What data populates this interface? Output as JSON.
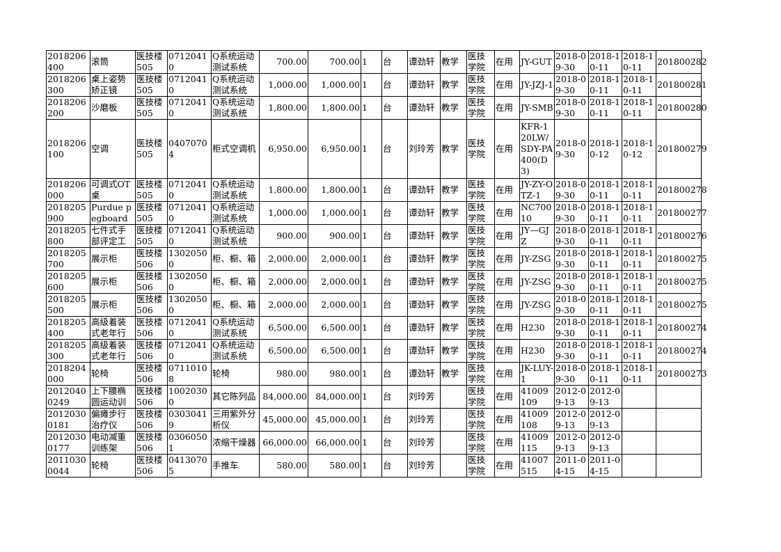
{
  "rows": [
    [
      "2018206400",
      "滚筒",
      "医技楼505",
      "07120410",
      "Q系统运动测试系统",
      "700.00",
      "700.00",
      "1",
      "台",
      "谭劲轩",
      "教学",
      "医技学院",
      "在用",
      "JY-GUT",
      "2018-09-30",
      "2018-10-11",
      "2018-10-11",
      "201800282"
    ],
    [
      "2018206300",
      "桌上姿势矫正镜",
      "医技楼505",
      "07120410",
      "Q系统运动测试系统",
      "1,000.00",
      "1,000.00",
      "1",
      "台",
      "谭劲轩",
      "教学",
      "医技学院",
      "在用",
      "JY-JZJ-1",
      "2018-09-30",
      "2018-10-11",
      "2018-10-11",
      "201800281"
    ],
    [
      "2018206200",
      "沙磨板",
      "医技楼505",
      "07120410",
      "Q系统运动测试系统",
      "1,800.00",
      "1,800.00",
      "1",
      "台",
      "谭劲轩",
      "教学",
      "医技学院",
      "在用",
      "JY-SMB",
      "2018-09-30",
      "2018-10-11",
      "2018-10-11",
      "201800280"
    ],
    [
      "2018206100",
      "空调",
      "医技楼505",
      "04070704",
      "柜式空调机",
      "6,950.00",
      "6,950.00",
      "1",
      "台",
      "刘玲芳",
      "教学",
      "医技学院",
      "在用",
      "KFR-120LW/SDY-PA400(D3)",
      "2018-09-30",
      "2018-10-12",
      "2018-10-12",
      "201800279"
    ],
    [
      "2018206000",
      "可调式OT桌",
      "医技楼505",
      "07120410",
      "Q系统运动测试系统",
      "1,800.00",
      "1,800.00",
      "1",
      "台",
      "谭劲轩",
      "教学",
      "医技学院",
      "在用",
      "JY-ZY-OTZ-1",
      "2018-09-30",
      "2018-10-11",
      "2018-10-11",
      "201800278"
    ],
    [
      "2018205900",
      "Purdue pegboard",
      "医技楼505",
      "07120410",
      "Q系统运动测试系统",
      "1,000.00",
      "1,000.00",
      "1",
      "台",
      "谭劲轩",
      "教学",
      "医技学院",
      "在用",
      "NC70010",
      "2018-09-30",
      "2018-10-11",
      "2018-10-11",
      "201800277"
    ],
    [
      "2018205800",
      "七件式手部评定工",
      "医技楼505",
      "07120410",
      "Q系统运动测试系统",
      "900.00",
      "900.00",
      "1",
      "台",
      "谭劲轩",
      "教学",
      "医技学院",
      "在用",
      "JY—GJZ",
      "2018-09-30",
      "2018-10-11",
      "2018-10-11",
      "201800276"
    ],
    [
      "2018205700",
      "展示柜",
      "医技楼506",
      "13020500",
      "柜、橱、箱",
      "2,000.00",
      "2,000.00",
      "1",
      "台",
      "谭劲轩",
      "教学",
      "医技学院",
      "在用",
      "JY-ZSG",
      "2018-09-30",
      "2018-10-11",
      "2018-10-11",
      "201800275"
    ],
    [
      "2018205600",
      "展示柜",
      "医技楼506",
      "13020500",
      "柜、橱、箱",
      "2,000.00",
      "2,000.00",
      "1",
      "台",
      "谭劲轩",
      "教学",
      "医技学院",
      "在用",
      "JY-ZSG",
      "2018-09-30",
      "2018-10-11",
      "2018-10-11",
      "201800275"
    ],
    [
      "2018205500",
      "展示柜",
      "医技楼506",
      "13020500",
      "柜、橱、箱",
      "2,000.00",
      "2,000.00",
      "1",
      "台",
      "谭劲轩",
      "教学",
      "医技学院",
      "在用",
      "JY-ZSG",
      "2018-09-30",
      "2018-10-11",
      "2018-10-11",
      "201800275"
    ],
    [
      "2018205400",
      "高级着装式老年行",
      "医技楼506",
      "07120410",
      "Q系统运动测试系统",
      "6,500.00",
      "6,500.00",
      "1",
      "台",
      "谭劲轩",
      "教学",
      "医技学院",
      "在用",
      "H230",
      "2018-09-30",
      "2018-10-11",
      "2018-10-11",
      "201800274"
    ],
    [
      "2018205300",
      "高级着装式老年行",
      "医技楼506",
      "07120410",
      "Q系统运动测试系统",
      "6,500.00",
      "6,500.00",
      "1",
      "台",
      "谭劲轩",
      "教学",
      "医技学院",
      "在用",
      "H230",
      "2018-09-30",
      "2018-10-11",
      "2018-10-11",
      "201800274"
    ],
    [
      "2018204000",
      "轮椅",
      "医技楼506",
      "07110108",
      "轮椅",
      "980.00",
      "980.00",
      "1",
      "台",
      "谭劲轩",
      "教学",
      "医技学院",
      "在用",
      "JK-LUY-1",
      "2018-09-30",
      "2018-10-11",
      "2018-10-11",
      "201800273"
    ],
    [
      "20120400249",
      "上下腰椭圆运动训",
      "医技楼506",
      "10020300",
      "其它陈列品",
      "84,000.00",
      "84,000.00",
      "1",
      "台",
      "刘玲芳",
      "",
      "医技学院",
      "在用",
      "41009109",
      "2012-09-13",
      "2012-09-13",
      "",
      ""
    ],
    [
      "20120300181",
      "偏瘫步行治疗仪",
      "医技楼506",
      "03030419",
      "三用紫外分析仪",
      "45,000.00",
      "45,000.00",
      "1",
      "台",
      "刘玲芳",
      "",
      "医技学院",
      "在用",
      "41009108",
      "2012-09-13",
      "2012-09-13",
      "",
      ""
    ],
    [
      "20120300177",
      "电动减重训练架",
      "医技楼506",
      "03060501",
      "浓缩干燥器",
      "66,000.00",
      "66,000.00",
      "1",
      "台",
      "刘玲芳",
      "",
      "医技学院",
      "在用",
      "41009115",
      "2012-09-13",
      "2012-09-13",
      "",
      ""
    ],
    [
      "20110300044",
      "轮椅",
      "医技楼506",
      "04130705",
      "手推车",
      "580.00",
      "580.00",
      "1",
      "台",
      "刘玲芳",
      "",
      "医技学院",
      "在用",
      "41007515",
      "2011-04-15",
      "2011-04-15",
      "",
      ""
    ]
  ]
}
